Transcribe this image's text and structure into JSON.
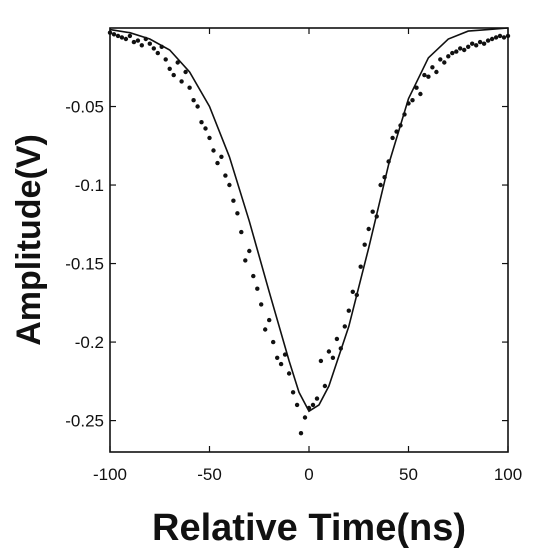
{
  "chart_data": {
    "type": "scatter",
    "xlabel": "Relative Time(ns)",
    "ylabel": "Amplitude(V)",
    "xlim": [
      -100,
      100
    ],
    "ylim": [
      -0.27,
      0.0
    ],
    "xticks": [
      -100,
      -50,
      0,
      50,
      100
    ],
    "xtick_labels": [
      "-100",
      "-50",
      "0",
      "50",
      "100"
    ],
    "yticks": [
      -0.05,
      -0.1,
      -0.15,
      -0.2,
      -0.25
    ],
    "ytick_labels": [
      "-0.05",
      "-0.1",
      "-0.15",
      "-0.2",
      "-0.25"
    ],
    "grid": false,
    "series": [
      {
        "kind": "line",
        "description_hidden": true,
        "x": [
          -100,
          -90,
          -80,
          -70,
          -60,
          -50,
          -40,
          -30,
          -20,
          -10,
          -5,
          0,
          5,
          10,
          20,
          30,
          40,
          50,
          60,
          70,
          80,
          90,
          100
        ],
        "y": [
          -0.001,
          -0.003,
          -0.007,
          -0.014,
          -0.028,
          -0.05,
          -0.082,
          -0.123,
          -0.168,
          -0.212,
          -0.232,
          -0.244,
          -0.24,
          -0.228,
          -0.19,
          -0.14,
          -0.087,
          -0.045,
          -0.019,
          -0.007,
          -0.002,
          -0.001,
          0.0
        ]
      },
      {
        "kind": "scatter",
        "x": [
          -100,
          -98,
          -96,
          -94,
          -92,
          -90,
          -88,
          -86,
          -84,
          -82,
          -80,
          -78,
          -76,
          -74,
          -72,
          -70,
          -68,
          -66,
          -64,
          -62,
          -60,
          -58,
          -56,
          -54,
          -52,
          -50,
          -48,
          -46,
          -44,
          -42,
          -40,
          -38,
          -36,
          -34,
          -32,
          -30,
          -28,
          -26,
          -24,
          -22,
          -20,
          -18,
          -16,
          -14,
          -12,
          -10,
          -8,
          -6,
          -4,
          -2,
          0,
          2,
          4,
          6,
          8,
          10,
          12,
          14,
          16,
          18,
          20,
          22,
          24,
          26,
          28,
          30,
          32,
          34,
          36,
          38,
          40,
          42,
          44,
          46,
          48,
          50,
          52,
          54,
          56,
          58,
          60,
          62,
          64,
          66,
          68,
          70,
          72,
          74,
          76,
          78,
          80,
          82,
          84,
          86,
          88,
          90,
          92,
          94,
          96,
          98,
          100
        ],
        "y": [
          -0.003,
          -0.004,
          -0.005,
          -0.006,
          -0.007,
          -0.005,
          -0.009,
          -0.008,
          -0.011,
          -0.007,
          -0.01,
          -0.013,
          -0.016,
          -0.012,
          -0.02,
          -0.026,
          -0.03,
          -0.022,
          -0.034,
          -0.028,
          -0.038,
          -0.046,
          -0.05,
          -0.06,
          -0.064,
          -0.07,
          -0.078,
          -0.086,
          -0.082,
          -0.094,
          -0.1,
          -0.11,
          -0.118,
          -0.13,
          -0.148,
          -0.142,
          -0.158,
          -0.166,
          -0.176,
          -0.192,
          -0.186,
          -0.2,
          -0.21,
          -0.214,
          -0.208,
          -0.22,
          -0.232,
          -0.24,
          -0.258,
          -0.248,
          -0.242,
          -0.24,
          -0.236,
          -0.212,
          -0.228,
          -0.206,
          -0.21,
          -0.198,
          -0.204,
          -0.19,
          -0.18,
          -0.168,
          -0.17,
          -0.152,
          -0.138,
          -0.128,
          -0.117,
          -0.12,
          -0.1,
          -0.095,
          -0.085,
          -0.07,
          -0.066,
          -0.062,
          -0.055,
          -0.048,
          -0.046,
          -0.038,
          -0.042,
          -0.03,
          -0.031,
          -0.025,
          -0.028,
          -0.02,
          -0.022,
          -0.018,
          -0.016,
          -0.015,
          -0.013,
          -0.014,
          -0.012,
          -0.01,
          -0.011,
          -0.009,
          -0.01,
          -0.008,
          -0.007,
          -0.006,
          -0.005,
          -0.006,
          -0.005
        ]
      }
    ]
  }
}
